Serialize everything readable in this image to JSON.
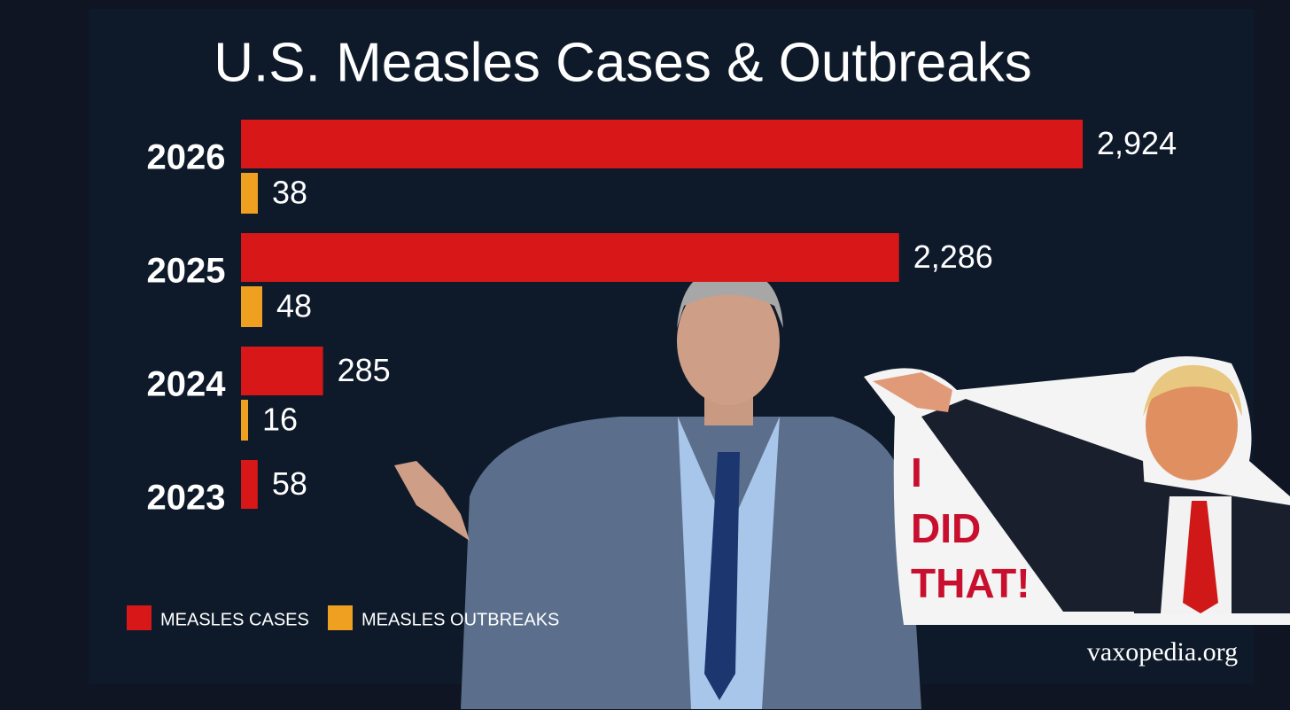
{
  "chart_data": {
    "type": "bar",
    "orientation": "horizontal",
    "title": "U.S. Measles Cases & Outbreaks",
    "categories": [
      "2026",
      "2025",
      "2024",
      "2023"
    ],
    "series": [
      {
        "name": "MEASLES CASES",
        "color": "#d81818",
        "values": [
          2924,
          2286,
          285,
          58
        ],
        "value_labels": [
          "2,924",
          "2,286",
          "285",
          "58"
        ]
      },
      {
        "name": "MEASLES OUTBREAKS",
        "color": "#f0a020",
        "values": [
          38,
          48,
          16,
          null
        ]
      }
    ],
    "annotations": {
      "sticker": [
        "I",
        "DID",
        "THAT!"
      ],
      "watermark": "vaxopedia.org"
    }
  }
}
